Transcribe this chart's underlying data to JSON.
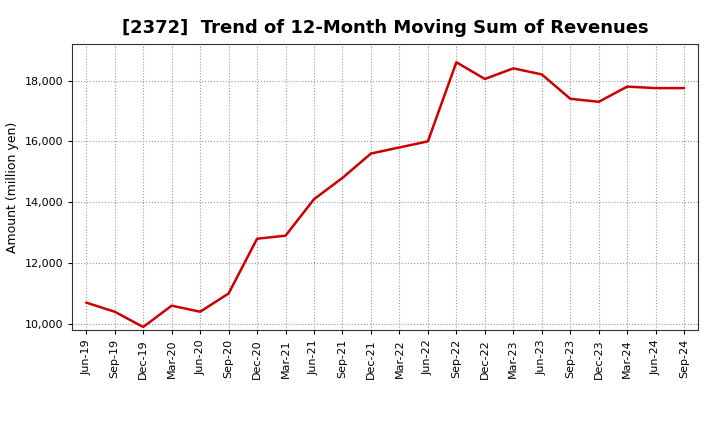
{
  "title": "[2372]  Trend of 12-Month Moving Sum of Revenues",
  "ylabel": "Amount (million yen)",
  "line_color": "#cc0000",
  "background_color": "#ffffff",
  "plot_bg_color": "#ffffff",
  "grid_color": "#999999",
  "x_labels": [
    "Jun-19",
    "Sep-19",
    "Dec-19",
    "Mar-20",
    "Jun-20",
    "Sep-20",
    "Dec-20",
    "Mar-21",
    "Jun-21",
    "Sep-21",
    "Dec-21",
    "Mar-22",
    "Jun-22",
    "Sep-22",
    "Dec-22",
    "Mar-23",
    "Jun-23",
    "Sep-23",
    "Dec-23",
    "Mar-24",
    "Jun-24",
    "Sep-24"
  ],
  "values": [
    10700,
    10400,
    9900,
    10600,
    10400,
    11000,
    12800,
    12900,
    14100,
    14800,
    15600,
    15800,
    16000,
    18600,
    18050,
    18400,
    18200,
    17400,
    17300,
    17800,
    17750,
    17750
  ],
  "ylim": [
    9800,
    19200
  ],
  "yticks": [
    10000,
    12000,
    14000,
    16000,
    18000
  ],
  "title_fontsize": 13,
  "ylabel_fontsize": 9,
  "tick_fontsize": 8,
  "line_width": 1.8
}
